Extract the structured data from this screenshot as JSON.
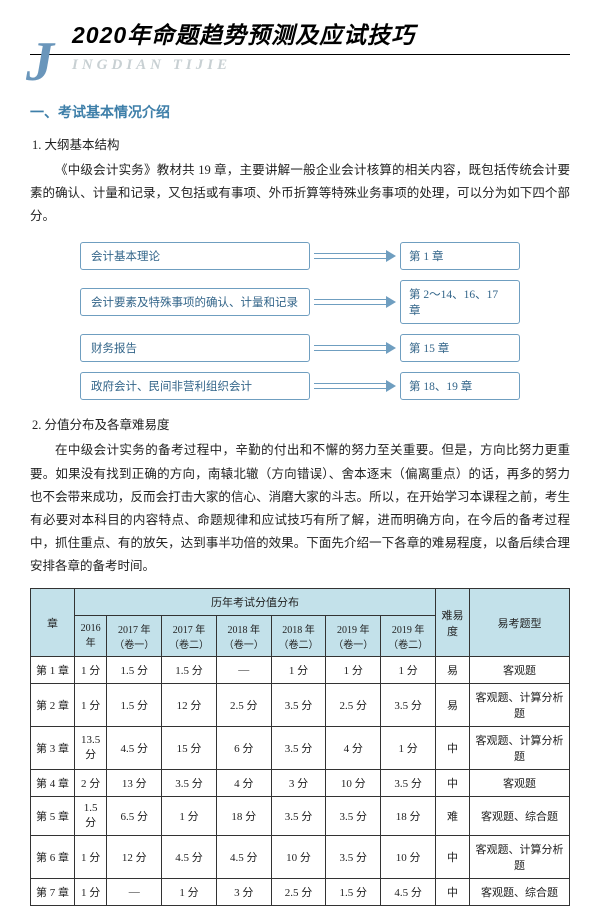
{
  "header": {
    "big_j": "J",
    "title": "2020年命题趋势预测及应试技巧",
    "pinyin": "INGDIAN TIJIE"
  },
  "section1": {
    "heading": "一、考试基本情况介绍",
    "sub1": "1. 大纲基本结构",
    "para1": "《中级会计实务》教材共 19 章，主要讲解一般企业会计核算的相关内容，既包括传统会计要素的确认、计量和记录，又包括或有事项、外币折算等特殊业务事项的处理，可以分为如下四个部分。",
    "flow": [
      {
        "left": "会计基本理论",
        "right": "第 1 章"
      },
      {
        "left": "会计要素及特殊事项的确认、计量和记录",
        "right": "第 2～14、16、17 章"
      },
      {
        "left": "财务报告",
        "right": "第 15 章"
      },
      {
        "left": "政府会计、民间非营利组织会计",
        "right": "第 18、19 章"
      }
    ],
    "sub2": "2. 分值分布及各章难易度",
    "para2": "在中级会计实务的备考过程中，辛勤的付出和不懈的努力至关重要。但是，方向比努力更重要。如果没有找到正确的方向，南辕北辙（方向错误）、舍本逐末（偏离重点）的话，再多的努力也不会带来成功，反而会打击大家的信心、消磨大家的斗志。所以，在开始学习本课程之前，考生有必要对本科目的内容特点、命题规律和应试技巧有所了解，进而明确方向，在今后的备考过程中，抓住重点、有的放矢，达到事半功倍的效果。下面先介绍一下各章的难易程度，以备后续合理安排各章的备考时间。"
  },
  "table": {
    "head_chapter": "章",
    "head_dist": "历年考试分值分布",
    "head_diff": "难易度",
    "head_type": "易考题型",
    "years": [
      "2016 年",
      "2017 年（卷一）",
      "2017 年（卷二）",
      "2018 年（卷一）",
      "2018 年（卷二）",
      "2019 年（卷一）",
      "2019 年（卷二）"
    ],
    "rows": [
      {
        "ch": "第 1 章",
        "vals": [
          "1 分",
          "1.5 分",
          "1.5 分",
          "—",
          "1 分",
          "1 分",
          "1 分"
        ],
        "diff": "易",
        "type": "客观题"
      },
      {
        "ch": "第 2 章",
        "vals": [
          "1 分",
          "1.5 分",
          "12 分",
          "2.5 分",
          "3.5 分",
          "2.5 分",
          "3.5 分"
        ],
        "diff": "易",
        "type": "客观题、计算分析题"
      },
      {
        "ch": "第 3 章",
        "vals": [
          "13.5 分",
          "4.5 分",
          "15 分",
          "6 分",
          "3.5 分",
          "4 分",
          "1 分"
        ],
        "diff": "中",
        "type": "客观题、计算分析题"
      },
      {
        "ch": "第 4 章",
        "vals": [
          "2 分",
          "13 分",
          "3.5 分",
          "4 分",
          "3 分",
          "10 分",
          "3.5 分"
        ],
        "diff": "中",
        "type": "客观题"
      },
      {
        "ch": "第 5 章",
        "vals": [
          "1.5 分",
          "6.5 分",
          "1 分",
          "18 分",
          "3.5 分",
          "3.5 分",
          "18 分"
        ],
        "diff": "难",
        "type": "客观题、综合题"
      },
      {
        "ch": "第 6 章",
        "vals": [
          "1 分",
          "12 分",
          "4.5 分",
          "4.5 分",
          "10 分",
          "3.5 分",
          "10 分"
        ],
        "diff": "中",
        "type": "客观题、计算分析题"
      },
      {
        "ch": "第 7 章",
        "vals": [
          "1 分",
          "—",
          "1 分",
          "3 分",
          "2.5 分",
          "1.5 分",
          "4.5 分"
        ],
        "diff": "中",
        "type": "客观题、综合题"
      }
    ]
  },
  "colors": {
    "accent": "#3e7fa9",
    "box_border": "#6f9ec0",
    "table_head_bg": "#c3e1ea",
    "pinyin": "#c8d0d3",
    "j_letter": "#6a96bb"
  }
}
